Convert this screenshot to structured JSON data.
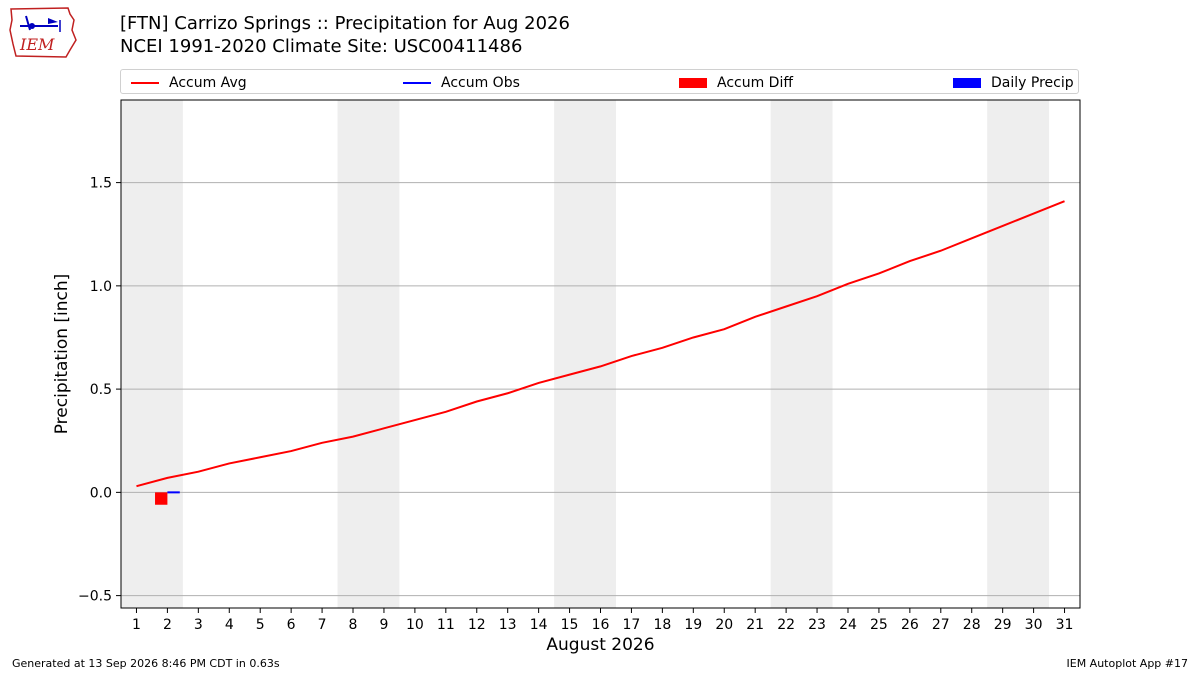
{
  "title_line1": "[FTN] Carrizo Springs :: Precipitation for Aug 2026",
  "title_line2": "NCEI 1991-2020 Climate Site: USC00411486",
  "logo_text": "IEM",
  "legend": [
    {
      "label": "Accum Avg",
      "color": "#ff0000",
      "kind": "line"
    },
    {
      "label": "Accum Obs",
      "color": "#0000ff",
      "kind": "line"
    },
    {
      "label": "Accum Diff",
      "color": "#ff0000",
      "kind": "box"
    },
    {
      "label": "Daily Precip",
      "color": "#0000ff",
      "kind": "box"
    }
  ],
  "footer_left": "Generated at 13 Sep 2026 8:46 PM CDT in 0.63s",
  "footer_right": "IEM Autoplot App #17",
  "chart_data": {
    "type": "line",
    "xlabel": "August 2026",
    "ylabel": "Precipitation [inch]",
    "xlim": [
      0.5,
      31.5
    ],
    "ylim": [
      -0.56,
      1.9
    ],
    "yticks": [
      -0.5,
      0.0,
      0.5,
      1.0,
      1.5
    ],
    "ytick_labels": [
      "−0.5",
      "0.0",
      "0.5",
      "1.0",
      "1.5"
    ],
    "xticks": [
      1,
      2,
      3,
      4,
      5,
      6,
      7,
      8,
      9,
      10,
      11,
      12,
      13,
      14,
      15,
      16,
      17,
      18,
      19,
      20,
      21,
      22,
      23,
      24,
      25,
      26,
      27,
      28,
      29,
      30,
      31
    ],
    "grid": "horizontal",
    "weekend_shading": [
      [
        0.5,
        2.5
      ],
      [
        7.5,
        9.5
      ],
      [
        14.5,
        16.5
      ],
      [
        21.5,
        23.5
      ],
      [
        28.5,
        30.5
      ]
    ],
    "shading_color": "#eeeeee",
    "series": [
      {
        "name": "Accum Avg",
        "type": "line",
        "color": "#ff0000",
        "x": [
          1,
          2,
          3,
          4,
          5,
          6,
          7,
          8,
          9,
          10,
          11,
          12,
          13,
          14,
          15,
          16,
          17,
          18,
          19,
          20,
          21,
          22,
          23,
          24,
          25,
          26,
          27,
          28,
          29,
          30,
          31
        ],
        "values": [
          0.03,
          0.07,
          0.1,
          0.14,
          0.17,
          0.2,
          0.24,
          0.27,
          0.31,
          0.35,
          0.39,
          0.44,
          0.48,
          0.53,
          0.57,
          0.61,
          0.66,
          0.7,
          0.75,
          0.79,
          0.85,
          0.9,
          0.95,
          1.01,
          1.06,
          1.12,
          1.17,
          1.23,
          1.29,
          1.35,
          1.41
        ]
      },
      {
        "name": "Accum Obs",
        "type": "line",
        "color": "#0000ff",
        "x": [
          2
        ],
        "values": [
          0.0
        ]
      },
      {
        "name": "Accum Diff",
        "type": "bar",
        "color": "#ff0000",
        "x": [
          2
        ],
        "values": [
          -0.06
        ]
      },
      {
        "name": "Daily Precip",
        "type": "bar",
        "color": "#0000ff",
        "x": [],
        "values": []
      }
    ]
  }
}
